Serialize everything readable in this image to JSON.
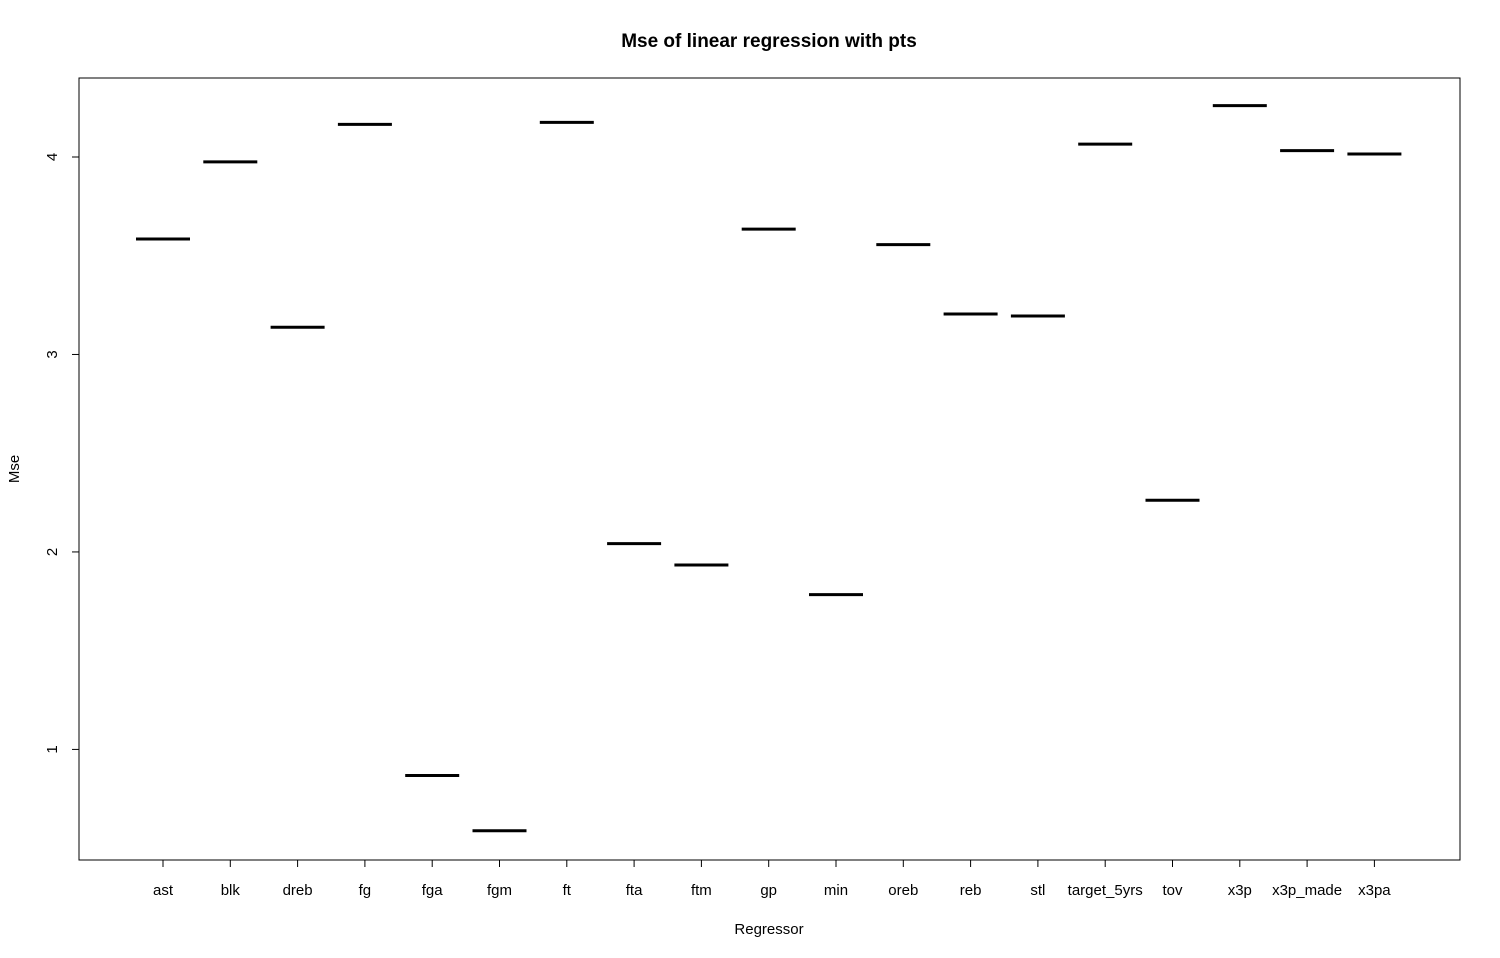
{
  "chart_data": {
    "type": "box",
    "title": "Mse of linear regression with pts",
    "xlabel": "Regressor",
    "ylabel": "Mse",
    "categories": [
      "ast",
      "blk",
      "dreb",
      "fg",
      "fga",
      "fgm",
      "ft",
      "fta",
      "ftm",
      "gp",
      "min",
      "oreb",
      "reb",
      "stl",
      "target_5yrs",
      "tov",
      "x3p",
      "x3p_made",
      "x3pa"
    ],
    "values": [
      3.585,
      3.975,
      3.138,
      4.165,
      0.868,
      0.588,
      4.175,
      2.042,
      1.934,
      3.635,
      1.784,
      3.556,
      3.205,
      3.195,
      4.065,
      2.262,
      4.26,
      4.032,
      4.015
    ],
    "ylim": [
      0.44,
      4.4
    ],
    "yticks": [
      1,
      2,
      3,
      4
    ],
    "grid": false,
    "legend": "none"
  }
}
